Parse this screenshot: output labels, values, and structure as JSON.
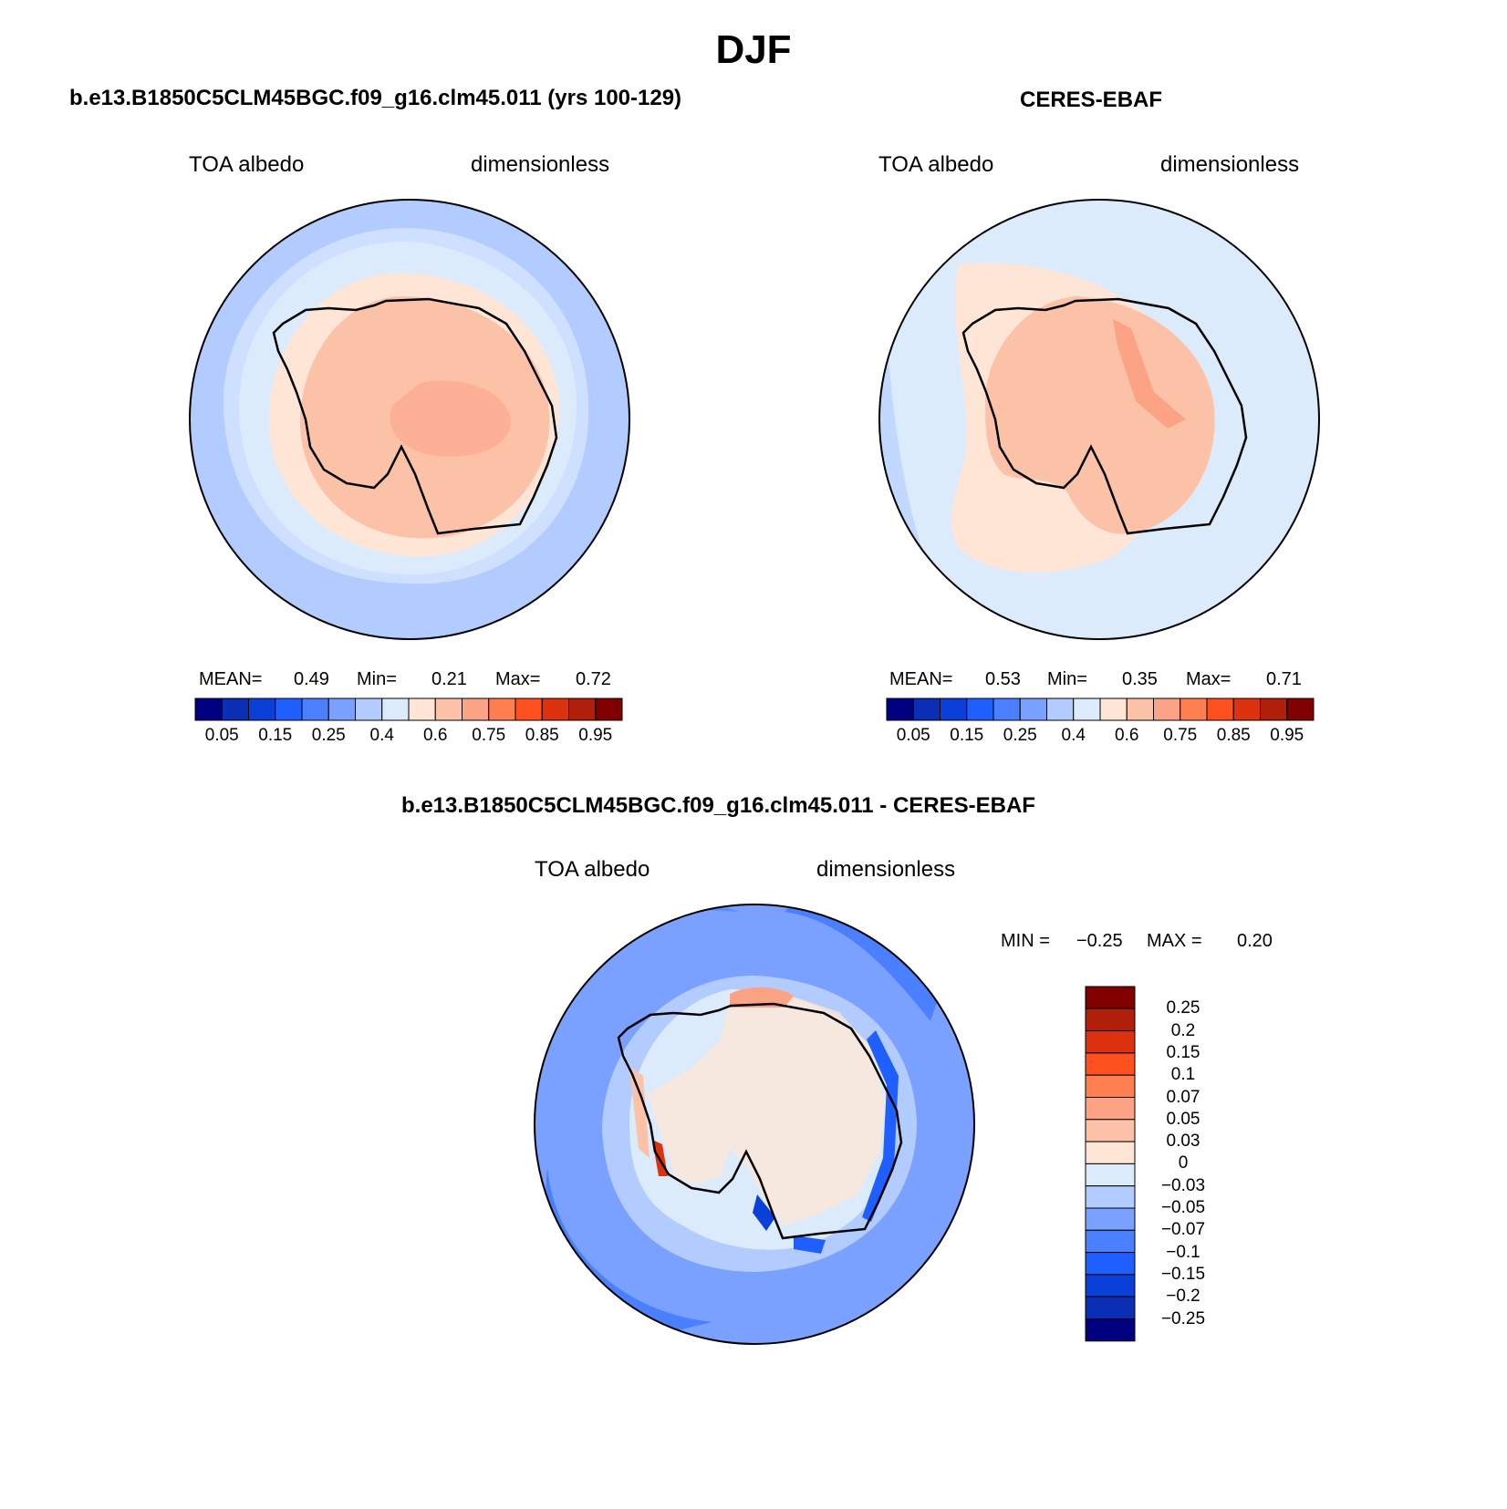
{
  "title": "DJF",
  "colors": {
    "blue_full": [
      "#000080",
      "#0a2eb4",
      "#0a40d8",
      "#1f5fff",
      "#4a7fff",
      "#7aa1ff",
      "#b3ccff",
      "#dcebfc"
    ],
    "red_full": [
      "#ffe5d6",
      "#fcc2a8",
      "#fca386",
      "#ff7f50",
      "#ff5020",
      "#dc3210",
      "#b01f0a",
      "#800000"
    ],
    "diff_blue": [
      "#000080",
      "#0a2eb4",
      "#0a40d8",
      "#1f5fff",
      "#4a7fff",
      "#7aa1ff",
      "#b3ccff",
      "#dcebfc"
    ],
    "diff_red": [
      "#ffe5d6",
      "#fcc2a8",
      "#fca386",
      "#ff7f50",
      "#ff5020",
      "#dc3210",
      "#b01f0a",
      "#800000"
    ]
  },
  "panels": [
    {
      "title": "b.e13.B1850C5CLM45BGC.f09_g16.clm45.011 (yrs 100-129)",
      "var_label": "TOA albedo",
      "units_label": "dimensionless",
      "stats": {
        "mean_label": "MEAN=",
        "mean": "0.49",
        "min_label": "Min=",
        "min": "0.21",
        "max_label": "Max=",
        "max": "0.72"
      },
      "colorbar_ticks": [
        "0.05",
        "0.15",
        "0.25",
        "0.4",
        "0.6",
        "0.75",
        "0.85",
        "0.95"
      ]
    },
    {
      "title": "CERES-EBAF",
      "var_label": "TOA albedo",
      "units_label": "dimensionless",
      "stats": {
        "mean_label": "MEAN=",
        "mean": "0.53",
        "min_label": "Min=",
        "min": "0.35",
        "max_label": "Max=",
        "max": "0.71"
      },
      "colorbar_ticks": [
        "0.05",
        "0.15",
        "0.25",
        "0.4",
        "0.6",
        "0.75",
        "0.85",
        "0.95"
      ]
    },
    {
      "title": "b.e13.B1850C5CLM45BGC.f09_g16.clm45.011 - CERES-EBAF",
      "var_label": "TOA albedo",
      "units_label": "dimensionless",
      "stats": {
        "min_label": "MIN =",
        "min": "−0.25",
        "max_label": "MAX =",
        "max": "0.20"
      },
      "colorbar_ticks": [
        "0.25",
        "0.2",
        "0.15",
        "0.1",
        "0.07",
        "0.05",
        "0.03",
        "0",
        "−0.03",
        "−0.05",
        "−0.07",
        "−0.1",
        "−0.15",
        "−0.2",
        "−0.25"
      ]
    }
  ]
}
